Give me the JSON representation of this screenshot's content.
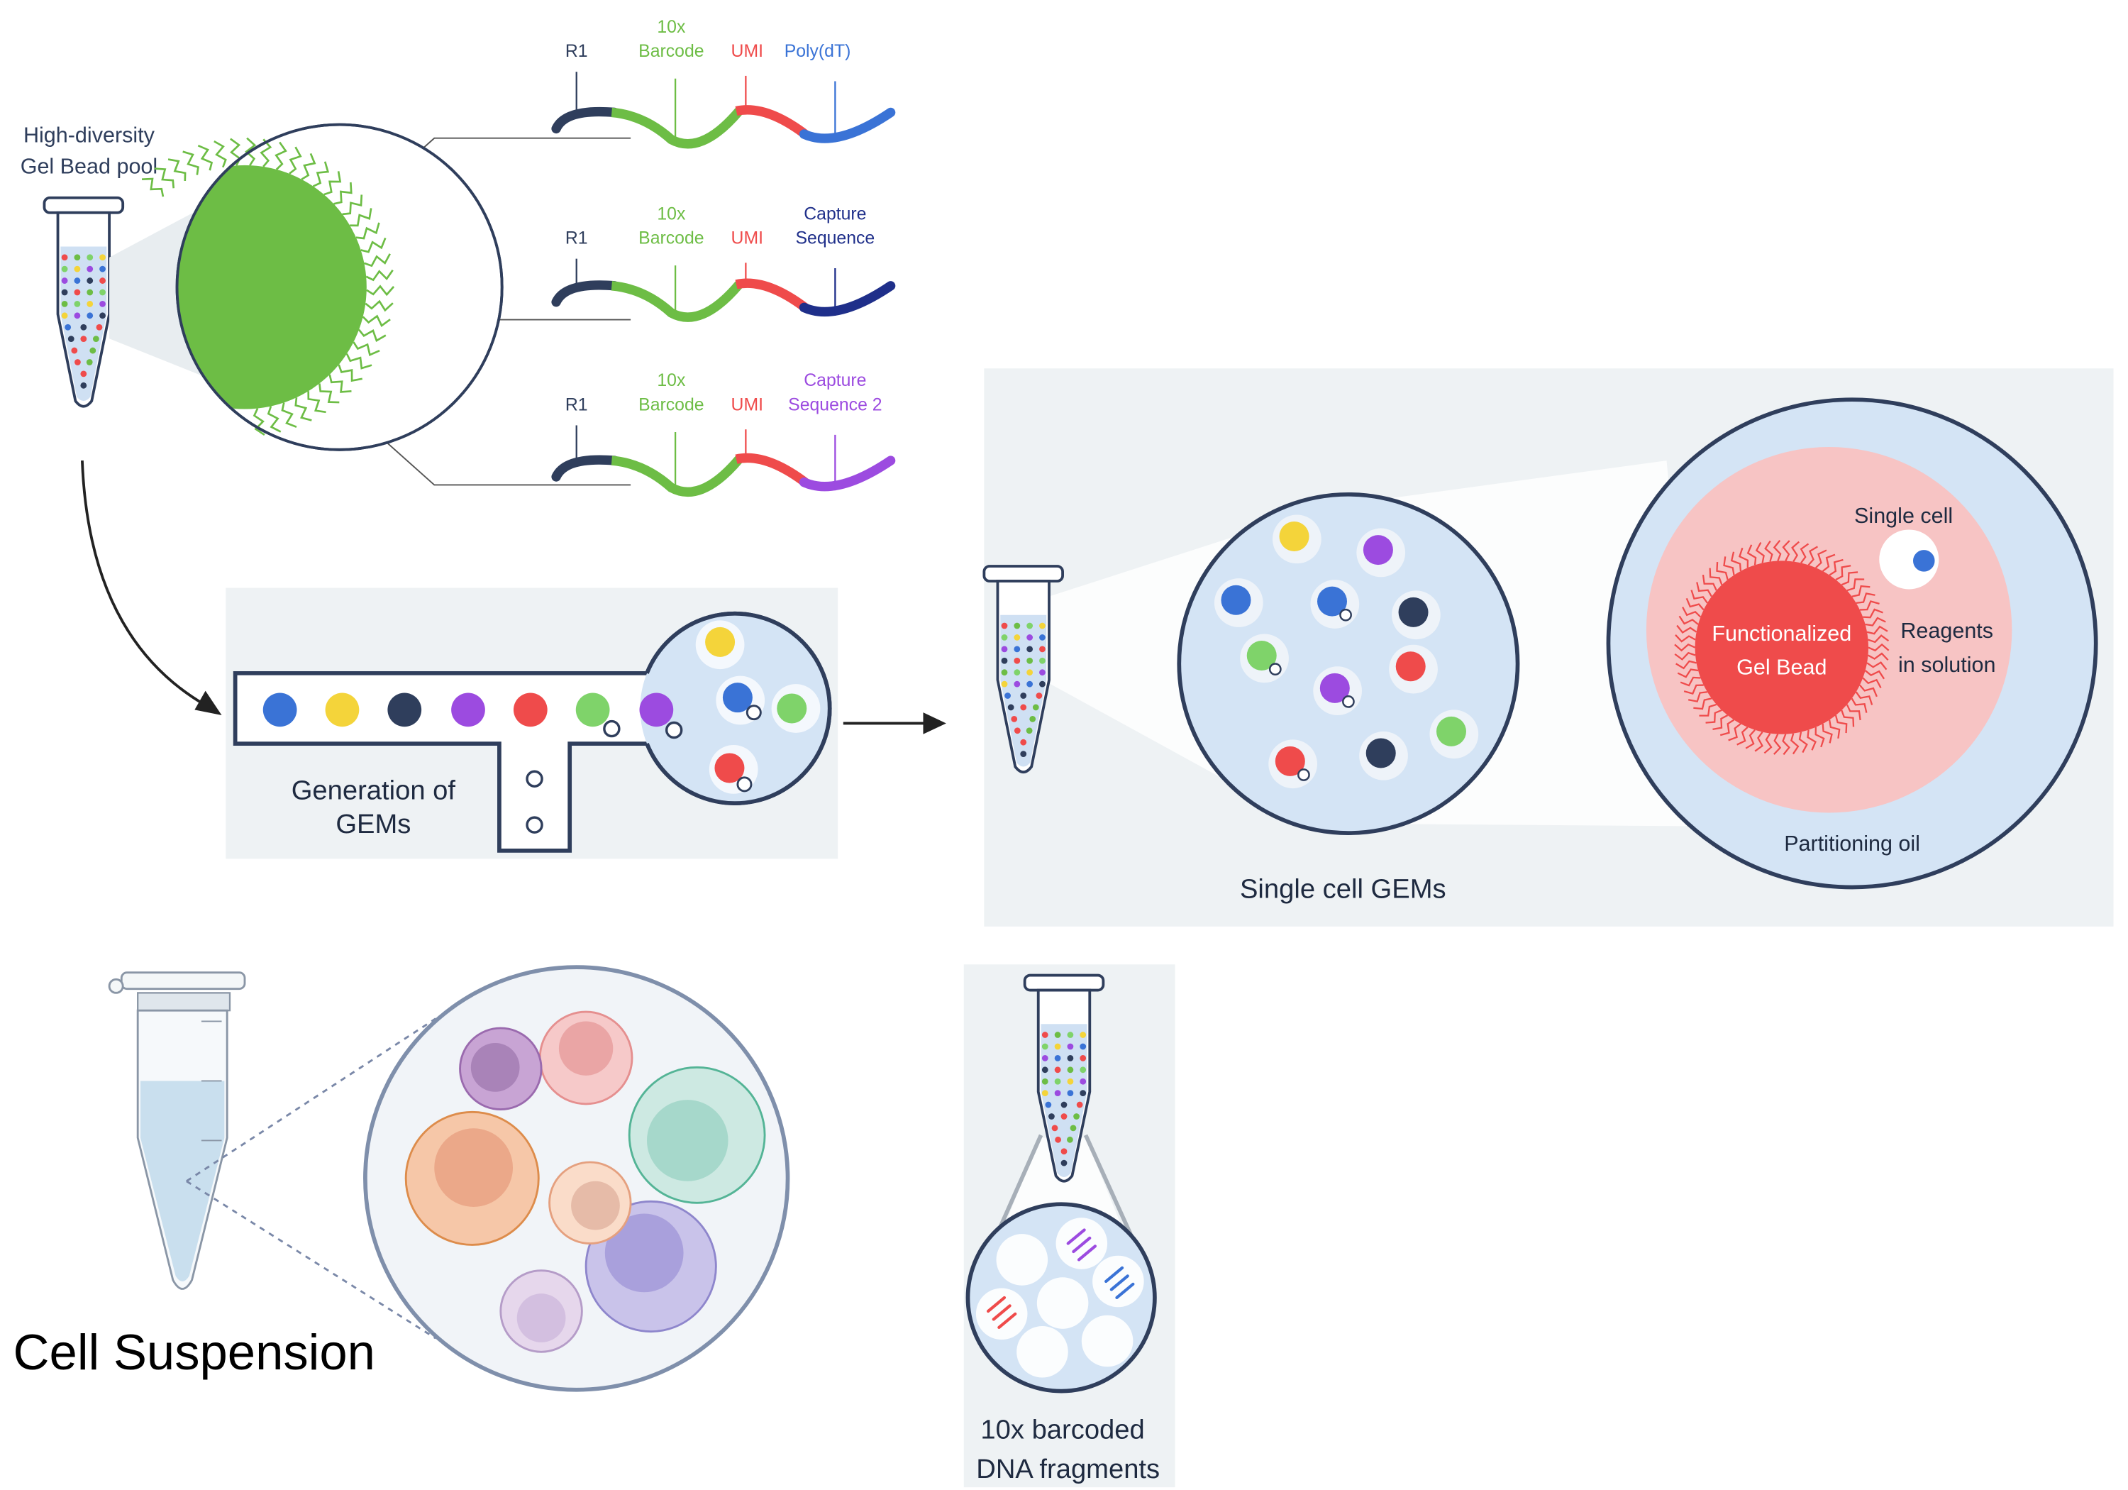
{
  "colors": {
    "navy": "#2f3e5c",
    "green": "#6dbd45",
    "red": "#ef4b4b",
    "blue": "#3a73d6",
    "dark_blue": "#1f2f8a",
    "purple": "#9c4be0",
    "yellow": "#f4d43a",
    "light_green": "#7fd36a",
    "panel_gray": "#eef2f4",
    "light_blue_fill": "#d4e4f5",
    "pink": "#f7c4c4"
  },
  "gel_bead_pool": {
    "label_line1": "High-diversity",
    "label_line2": "Gel Bead pool"
  },
  "oligos": [
    {
      "r1": "R1",
      "barcode_line1": "10x",
      "barcode_line2": "Barcode",
      "umi": "UMI",
      "end_line1": "Poly(dT)",
      "end_line2": "",
      "end_color": "#3a73d6"
    },
    {
      "r1": "R1",
      "barcode_line1": "10x",
      "barcode_line2": "Barcode",
      "umi": "UMI",
      "end_line1": "Capture",
      "end_line2": "Sequence",
      "end_color": "#1f2f8a"
    },
    {
      "r1": "R1",
      "barcode_line1": "10x",
      "barcode_line2": "Barcode",
      "umi": "UMI",
      "end_line1": "Capture",
      "end_line2": "Sequence 2",
      "end_color": "#9c4be0"
    }
  ],
  "microfluidics": {
    "label_line1": "Generation of",
    "label_line2": "GEMs",
    "bead_colors": [
      "#3a73d6",
      "#f4d43a",
      "#2f3e5c",
      "#9c4be0",
      "#ef4b4b",
      "#7fd36a",
      "#9c4be0"
    ]
  },
  "gems_panel": {
    "gems_label": "Single cell GEMs",
    "single_cell_label": "Single cell",
    "bead_label_line1": "Functionalized",
    "bead_label_line2": "Gel Bead",
    "reagents_line1": "Reagents",
    "reagents_line2": "in solution",
    "oil_label": "Partitioning oil"
  },
  "cell_suspension": {
    "label": "Cell Suspension"
  },
  "dna_fragments": {
    "label_line1": "10x barcoded",
    "label_line2": "DNA fragments"
  }
}
